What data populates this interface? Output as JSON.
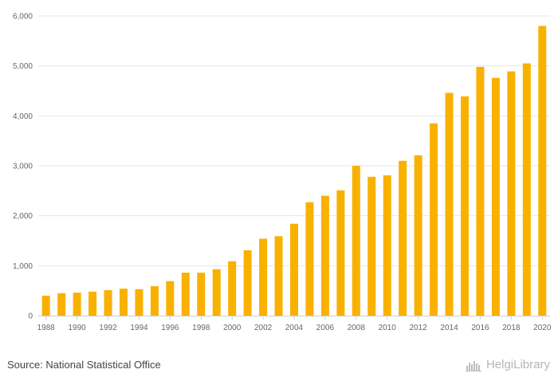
{
  "chart_data": {
    "type": "bar",
    "title": "",
    "xlabel": "",
    "ylabel": "",
    "categories": [
      "1988",
      "1989",
      "1990",
      "1991",
      "1992",
      "1993",
      "1994",
      "1995",
      "1996",
      "1997",
      "1998",
      "1999",
      "2000",
      "2001",
      "2002",
      "2003",
      "2004",
      "2005",
      "2006",
      "2007",
      "2008",
      "2009",
      "2010",
      "2011",
      "2012",
      "2013",
      "2014",
      "2015",
      "2016",
      "2017",
      "2018",
      "2019",
      "2020"
    ],
    "x_tick_labels": [
      "1988",
      "1990",
      "1992",
      "1994",
      "1996",
      "1998",
      "2000",
      "2002",
      "2004",
      "2006",
      "2008",
      "2010",
      "2012",
      "2014",
      "2016",
      "2018",
      "2020"
    ],
    "values": [
      400,
      450,
      460,
      480,
      510,
      540,
      530,
      590,
      690,
      860,
      860,
      930,
      1090,
      1310,
      1540,
      1590,
      1840,
      2270,
      2400,
      2510,
      3000,
      2780,
      2810,
      3100,
      3210,
      3850,
      4460,
      4390,
      4980,
      4760,
      4890,
      5050,
      5800
    ],
    "ylim": [
      0,
      6000
    ],
    "y_ticks": [
      0,
      1000,
      2000,
      3000,
      4000,
      5000,
      6000
    ],
    "y_tick_labels": [
      "0",
      "1,000",
      "2,000",
      "3,000",
      "4,000",
      "5,000",
      "6,000"
    ],
    "grid": true,
    "bar_color": "#f9b100"
  },
  "footer": {
    "source": "Source: National Statistical Office",
    "logo_text": "HelgiLibrary"
  }
}
